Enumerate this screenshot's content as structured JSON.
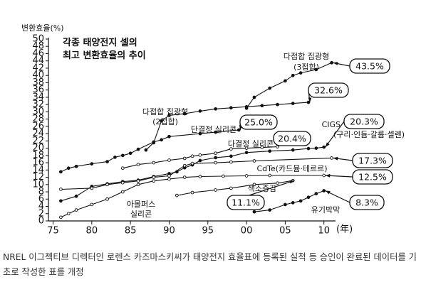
{
  "chart_data": {
    "type": "line",
    "title": "각종 태양전지 셀의\n최고 변환효율의 추이",
    "y_label": "변환효율(%)",
    "x_label": "(年)",
    "caption": "NREL 이그젝티브 디렉터인 로렌스 카즈마스키씨가 태양전지 효율표에 등록된 실적 등 승인이 완료된 데이터를 기초로 작성한 표를 개정",
    "xlim": [
      1974.4,
      2011.5
    ],
    "xticks": [
      {
        "value": 1975,
        "label": "75"
      },
      {
        "value": 1980,
        "label": "80"
      },
      {
        "value": 1985,
        "label": "85"
      },
      {
        "value": 1990,
        "label": "90"
      },
      {
        "value": 1995,
        "label": "95"
      },
      {
        "value": 2000,
        "label": "00"
      },
      {
        "value": 2005,
        "label": "05"
      },
      {
        "value": 2010,
        "label": "10"
      }
    ],
    "ylim": [
      0,
      50
    ],
    "yticks": [
      0,
      2,
      4,
      6,
      8,
      10,
      12,
      14,
      16,
      18,
      20,
      22,
      24,
      26,
      28,
      30,
      32,
      34,
      36,
      38,
      40,
      42,
      44,
      46,
      48,
      50
    ],
    "grid": false,
    "series": [
      {
        "name": "다접합 집광형\n(3접합)",
        "color": "#111111",
        "marker": "filled",
        "x": [
          2000,
          2001,
          2003,
          2005,
          2006,
          2007,
          2009,
          2011
        ],
        "values": [
          31.0,
          34.0,
          36.5,
          38.5,
          40.0,
          40.7,
          41.6,
          43.5
        ],
        "value_labels": [
          null,
          null,
          null,
          null,
          null,
          null,
          null,
          "43.5%"
        ]
      },
      {
        "name": "다접합 집광형\n(2접합)",
        "color": "#111111",
        "marker": "filled",
        "x": [
          1987,
          1988,
          1989,
          1990,
          1992,
          1994,
          1996,
          1998,
          2000,
          2002,
          2004,
          2006,
          2008
        ],
        "values": [
          19.5,
          21.5,
          27.5,
          29,
          29.5,
          30.2,
          30.8,
          31.1,
          31.4,
          31.7,
          32,
          32.3,
          32.6
        ],
        "value_labels": [
          null,
          null,
          null,
          null,
          null,
          null,
          null,
          null,
          null,
          null,
          null,
          null,
          "32.6%"
        ]
      },
      {
        "name": "단결정 실리콘",
        "color": "#111111",
        "marker": "filled",
        "x": [
          1976,
          1977,
          1978,
          1980,
          1982,
          1983,
          1984,
          1985,
          1986,
          1988,
          1989,
          1990,
          1994,
          1996,
          1999
        ],
        "values": [
          13.5,
          14.5,
          15,
          15.7,
          16.3,
          17.5,
          18,
          18.6,
          19.7,
          21.7,
          22.3,
          23.2,
          24,
          24.4,
          25.0
        ],
        "value_labels": [
          null,
          null,
          null,
          null,
          null,
          null,
          null,
          null,
          null,
          null,
          null,
          null,
          null,
          null,
          "25.0%"
        ]
      },
      {
        "name": "다결정 실리콘",
        "color": "#111111",
        "marker": "open",
        "x": [
          1984,
          1986,
          1988,
          1990,
          1992,
          1993,
          1994,
          1996,
          1998,
          2000,
          2002,
          2004
        ],
        "values": [
          14.5,
          15.5,
          16,
          16.7,
          17.2,
          17.8,
          18.1,
          18.6,
          19.8,
          20.0,
          20.2,
          20.4
        ],
        "value_labels": [
          null,
          null,
          null,
          null,
          null,
          null,
          null,
          null,
          null,
          null,
          null,
          "20.4%"
        ]
      },
      {
        "name": "CIGS\n(구리·인듐·갈륨·셀렌)",
        "color": "#111111",
        "marker": "filled",
        "x": [
          1976,
          1978,
          1980,
          1982,
          1984,
          1986,
          1988,
          1990,
          1991,
          1992,
          1993,
          1994,
          1996,
          1998,
          2000,
          2003,
          2006,
          2008,
          2009,
          2010
        ],
        "values": [
          5.5,
          6.8,
          9.5,
          10.2,
          10.8,
          11.2,
          12.2,
          13,
          13.5,
          14.6,
          15.4,
          16.6,
          17.4,
          17.8,
          18.8,
          19.2,
          19.5,
          19.9,
          20.0,
          20.3
        ],
        "value_labels": [
          null,
          null,
          null,
          null,
          null,
          null,
          null,
          null,
          null,
          null,
          null,
          null,
          null,
          null,
          null,
          null,
          null,
          null,
          null,
          "20.3%"
        ]
      },
      {
        "name": "CdTe(카드뮴·테르르)",
        "color": "#111111",
        "marker": "open",
        "x": [
          1976,
          1980,
          1982,
          1984,
          1986,
          1988,
          1990,
          1992,
          1993,
          1996,
          1998,
          2001,
          2011
        ],
        "values": [
          8.7,
          9,
          10,
          10.5,
          11,
          12,
          12.4,
          15.2,
          15.8,
          16,
          16.2,
          16.5,
          17.3
        ],
        "value_labels": [
          null,
          null,
          null,
          null,
          null,
          null,
          null,
          null,
          null,
          null,
          null,
          null,
          "17.3%"
        ]
      },
      {
        "name": "아몰퍼스\n실리콘",
        "color": "#111111",
        "marker": "open",
        "x": [
          1976,
          1977,
          1978,
          1980,
          1982,
          1984,
          1986,
          1988,
          1990,
          1992,
          1994,
          1997,
          2000,
          2003,
          2010
        ],
        "values": [
          1,
          2,
          3,
          4.5,
          6,
          8,
          10,
          11,
          11.5,
          12,
          12.2,
          12.3,
          12.4,
          12.5,
          12.5
        ],
        "value_labels": [
          null,
          null,
          null,
          null,
          null,
          null,
          null,
          null,
          null,
          null,
          null,
          null,
          null,
          null,
          "12.5%"
        ]
      },
      {
        "name": "색소증감",
        "color": "#111111",
        "marker": "open",
        "x": [
          1991,
          1993,
          1996,
          1998,
          2001,
          2004,
          2006
        ],
        "values": [
          7,
          7.8,
          8.5,
          9,
          10,
          10.4,
          11.1
        ],
        "value_labels": [
          null,
          null,
          null,
          null,
          null,
          null,
          "11.1%"
        ]
      },
      {
        "name": "유기박막",
        "color": "#111111",
        "marker": "filled",
        "x": [
          2001,
          2003,
          2005,
          2006,
          2007,
          2008,
          2009,
          2010
        ],
        "values": [
          2.5,
          3,
          4.5,
          5,
          5.5,
          6.5,
          7.5,
          8.3
        ],
        "value_labels": [
          null,
          null,
          null,
          null,
          null,
          null,
          null,
          "8.3%"
        ]
      }
    ]
  }
}
